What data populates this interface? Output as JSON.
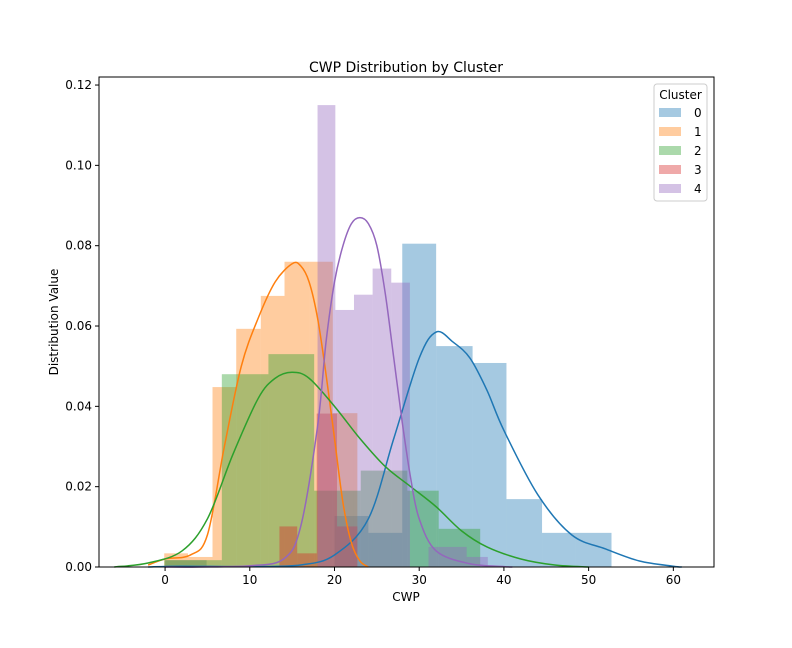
{
  "chart_data": {
    "type": "histogram+kde",
    "title": "CWP Distribution by Cluster",
    "xlabel": "CWP",
    "ylabel": "Distribution Value",
    "xlim": [
      -7.8,
      64.8
    ],
    "ylim": [
      0,
      0.122
    ],
    "xticks": [
      0,
      10,
      20,
      30,
      40,
      50,
      60
    ],
    "yticks": [
      0.0,
      0.02,
      0.04,
      0.06,
      0.08,
      0.1,
      0.12
    ],
    "ytick_labels": [
      "0.00",
      "0.02",
      "0.04",
      "0.06",
      "0.08",
      "0.10",
      "0.12"
    ],
    "grid": false,
    "legend": {
      "title": "Cluster",
      "position": "top-right"
    },
    "series": [
      {
        "name": "0",
        "color": "#1f77b4",
        "hist": [
          {
            "x0": 0.0,
            "x1": 4.9,
            "h": 0.0017
          },
          {
            "x0": 4.9,
            "x1": 8.8,
            "h": 0.0
          },
          {
            "x0": 20.0,
            "x1": 24.0,
            "h": 0.0127
          },
          {
            "x0": 24.0,
            "x1": 28.0,
            "h": 0.0085
          },
          {
            "x0": 28.0,
            "x1": 32.0,
            "h": 0.0805
          },
          {
            "x0": 32.0,
            "x1": 36.3,
            "h": 0.055
          },
          {
            "x0": 36.3,
            "x1": 40.3,
            "h": 0.0508
          },
          {
            "x0": 40.3,
            "x1": 44.5,
            "h": 0.0169
          },
          {
            "x0": 44.5,
            "x1": 48.5,
            "h": 0.0085
          },
          {
            "x0": 48.5,
            "x1": 52.7,
            "h": 0.0085
          }
        ],
        "kde": [
          [
            -2,
            0.0
          ],
          [
            2,
            0.0002
          ],
          [
            10,
            0.0001
          ],
          [
            16,
            0.0005
          ],
          [
            20,
            0.003
          ],
          [
            24,
            0.012
          ],
          [
            27,
            0.032
          ],
          [
            30,
            0.052
          ],
          [
            32,
            0.0585
          ],
          [
            34,
            0.056
          ],
          [
            36,
            0.052
          ],
          [
            38,
            0.044
          ],
          [
            40,
            0.034
          ],
          [
            44,
            0.018
          ],
          [
            48,
            0.008
          ],
          [
            52,
            0.0045
          ],
          [
            56,
            0.0015
          ],
          [
            60,
            0.0002
          ],
          [
            61,
            0.0
          ]
        ]
      },
      {
        "name": "1",
        "color": "#ff7f0e",
        "hist": [
          {
            "x0": -0.1,
            "x1": 2.7,
            "h": 0.0034
          },
          {
            "x0": 2.7,
            "x1": 5.6,
            "h": 0.0025
          },
          {
            "x0": 5.6,
            "x1": 8.4,
            "h": 0.0448
          },
          {
            "x0": 8.4,
            "x1": 11.3,
            "h": 0.0593
          },
          {
            "x0": 11.3,
            "x1": 14.1,
            "h": 0.0675
          },
          {
            "x0": 14.1,
            "x1": 17.0,
            "h": 0.076
          },
          {
            "x0": 17.0,
            "x1": 19.8,
            "h": 0.076
          },
          {
            "x0": 19.8,
            "x1": 22.7,
            "h": 0.0383
          }
        ],
        "kde": [
          [
            -2,
            0.0005
          ],
          [
            0,
            0.002
          ],
          [
            3,
            0.003
          ],
          [
            5,
            0.008
          ],
          [
            7,
            0.03
          ],
          [
            9,
            0.05
          ],
          [
            11,
            0.062
          ],
          [
            13,
            0.071
          ],
          [
            15,
            0.0755
          ],
          [
            16,
            0.075
          ],
          [
            17,
            0.071
          ],
          [
            18,
            0.062
          ],
          [
            19,
            0.048
          ],
          [
            20,
            0.032
          ],
          [
            21,
            0.016
          ],
          [
            22,
            0.006
          ],
          [
            23,
            0.0015
          ],
          [
            24,
            0.0
          ]
        ]
      },
      {
        "name": "2",
        "color": "#2ca02c",
        "hist": [
          {
            "x0": -0.1,
            "x1": 6.7,
            "h": 0.0017
          },
          {
            "x0": 6.7,
            "x1": 12.2,
            "h": 0.048
          },
          {
            "x0": 12.2,
            "x1": 17.6,
            "h": 0.053
          },
          {
            "x0": 17.6,
            "x1": 23.1,
            "h": 0.019
          },
          {
            "x0": 23.1,
            "x1": 28.6,
            "h": 0.024
          },
          {
            "x0": 28.6,
            "x1": 32.3,
            "h": 0.019
          },
          {
            "x0": 32.3,
            "x1": 37.2,
            "h": 0.0095
          }
        ],
        "kde": [
          [
            -6,
            0.0
          ],
          [
            -2,
            0.001
          ],
          [
            2,
            0.004
          ],
          [
            5,
            0.012
          ],
          [
            8,
            0.028
          ],
          [
            11,
            0.042
          ],
          [
            13,
            0.047
          ],
          [
            15,
            0.0485
          ],
          [
            17,
            0.047
          ],
          [
            20,
            0.04
          ],
          [
            23,
            0.032
          ],
          [
            26,
            0.025
          ],
          [
            29,
            0.02
          ],
          [
            32,
            0.015
          ],
          [
            35,
            0.009
          ],
          [
            38,
            0.005
          ],
          [
            42,
            0.002
          ],
          [
            46,
            0.0005
          ],
          [
            50,
            0.0
          ]
        ]
      },
      {
        "name": "3",
        "color": "#d62728",
        "hist": [
          {
            "x0": 13.5,
            "x1": 15.6,
            "h": 0.0101
          },
          {
            "x0": 15.6,
            "x1": 17.9,
            "h": 0.0034
          },
          {
            "x0": 17.9,
            "x1": 20.3,
            "h": 0.0382
          },
          {
            "x0": 20.3,
            "x1": 22.7,
            "h": 0.0101
          },
          {
            "x0": 22.7,
            "x1": 25.1,
            "h": 0.0
          },
          {
            "x0": 25.1,
            "x1": 27.5,
            "h": 0.0
          }
        ],
        "kde": []
      },
      {
        "name": "4",
        "color": "#9467bd",
        "hist": [
          {
            "x0": 18.0,
            "x1": 20.1,
            "h": 0.115
          },
          {
            "x0": 20.1,
            "x1": 22.3,
            "h": 0.064
          },
          {
            "x0": 22.3,
            "x1": 24.5,
            "h": 0.0678
          },
          {
            "x0": 24.5,
            "x1": 26.7,
            "h": 0.0743
          },
          {
            "x0": 26.7,
            "x1": 28.9,
            "h": 0.0708
          },
          {
            "x0": 28.9,
            "x1": 31.1,
            "h": 0.0
          },
          {
            "x0": 31.1,
            "x1": 35.6,
            "h": 0.005
          },
          {
            "x0": 35.6,
            "x1": 38.1,
            "h": 0.0025
          }
        ],
        "kde": [
          [
            0,
            0.0
          ],
          [
            4,
            0.0
          ],
          [
            10,
            0.0003
          ],
          [
            14,
            0.002
          ],
          [
            16,
            0.01
          ],
          [
            18,
            0.035
          ],
          [
            19,
            0.056
          ],
          [
            20,
            0.071
          ],
          [
            21,
            0.08
          ],
          [
            22,
            0.0855
          ],
          [
            23,
            0.087
          ],
          [
            24,
            0.0855
          ],
          [
            25,
            0.08
          ],
          [
            26,
            0.068
          ],
          [
            27,
            0.052
          ],
          [
            28,
            0.036
          ],
          [
            29,
            0.022
          ],
          [
            30,
            0.012
          ],
          [
            32,
            0.004
          ],
          [
            36,
            0.0008
          ],
          [
            40,
            0.0001
          ],
          [
            41,
            0.0
          ]
        ]
      }
    ]
  }
}
